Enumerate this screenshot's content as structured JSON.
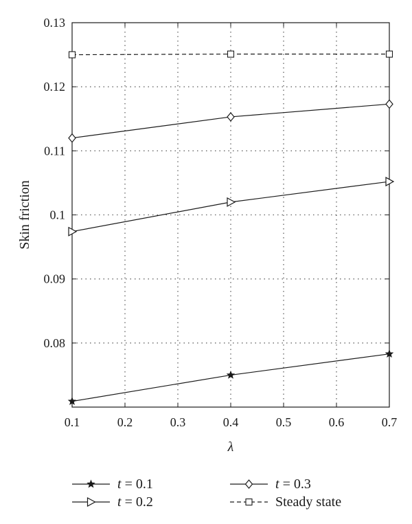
{
  "chart_data": {
    "type": "line",
    "title": "",
    "xlabel": "λ",
    "ylabel": "Skin friction",
    "x": [
      0.1,
      0.4,
      0.7
    ],
    "xlim": [
      0.1,
      0.7
    ],
    "ylim": [
      0.07,
      0.13
    ],
    "x_ticks": [
      "0.1",
      "0.2",
      "0.3",
      "0.4",
      "0.5",
      "0.6",
      "0.7"
    ],
    "y_ticks": [
      "0.08",
      "0.09",
      "0.1",
      "0.11",
      "0.12",
      "0.13"
    ],
    "grid": true,
    "legend_position": "bottom",
    "series": [
      {
        "name": "t = 0.1",
        "var": "t",
        "eq": "= 0.1",
        "marker": "star",
        "dash": "solid",
        "values": [
          0.0709,
          0.075,
          0.0783
        ]
      },
      {
        "name": "t = 0.3",
        "var": "t",
        "eq": "= 0.3",
        "marker": "diamond",
        "dash": "solid",
        "values": [
          0.112,
          0.1153,
          0.1173
        ]
      },
      {
        "name": "t = 0.2",
        "var": "t",
        "eq": "= 0.2",
        "marker": "triangle-right",
        "dash": "solid",
        "values": [
          0.0974,
          0.102,
          0.1052
        ]
      },
      {
        "name": "Steady state",
        "var": "",
        "eq": "Steady state",
        "marker": "square",
        "dash": "dashed",
        "values": [
          0.125,
          0.1251,
          0.1251
        ]
      }
    ],
    "line_color": "#1a1a1a"
  }
}
